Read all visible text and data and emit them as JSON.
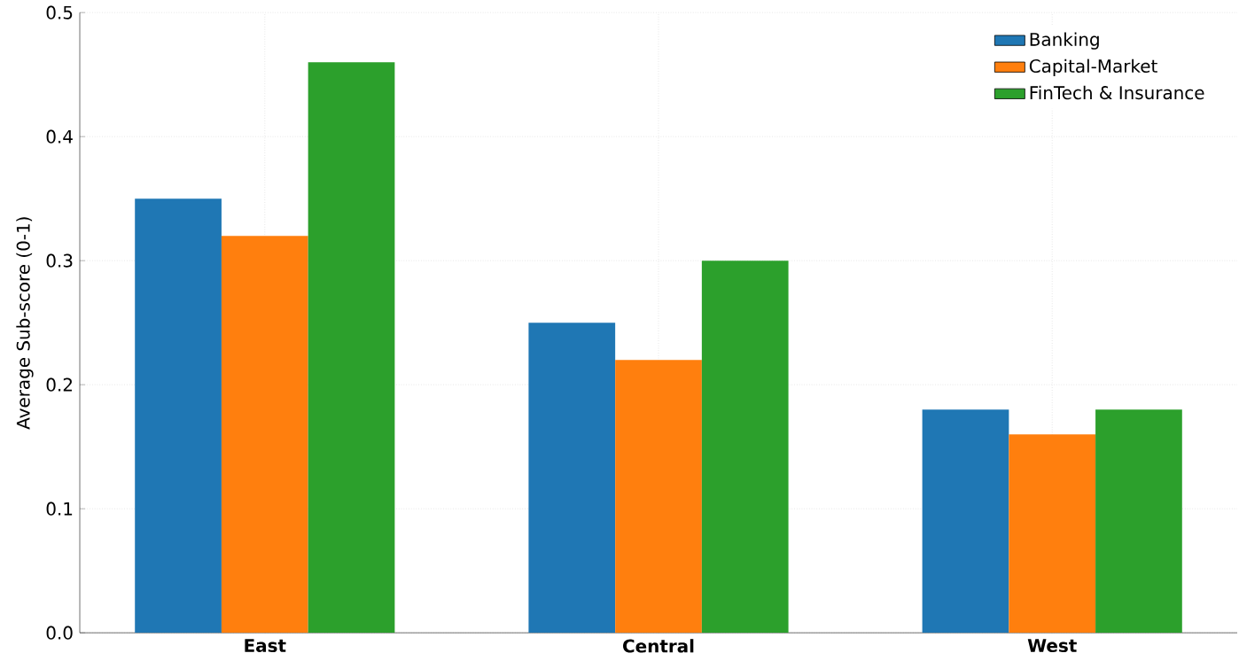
{
  "chart_data": {
    "type": "bar",
    "ylabel": "Average Sub-score (0-1)",
    "categories": [
      "East",
      "Central",
      "West"
    ],
    "series": [
      {
        "name": "Banking",
        "color": "#1f77b4",
        "values": [
          0.35,
          0.25,
          0.18
        ]
      },
      {
        "name": "Capital-Market",
        "color": "#ff7f0e",
        "values": [
          0.32,
          0.22,
          0.16
        ]
      },
      {
        "name": "FinTech & Insurance",
        "color": "#2ca02c",
        "values": [
          0.46,
          0.3,
          0.18
        ]
      }
    ],
    "ylim": [
      0,
      0.5
    ],
    "yticks": [
      {
        "value": 0,
        "label": "0.0"
      },
      0.1,
      0.2,
      0.3,
      0.4,
      0.5
    ],
    "grid": true,
    "legend": "top right"
  }
}
